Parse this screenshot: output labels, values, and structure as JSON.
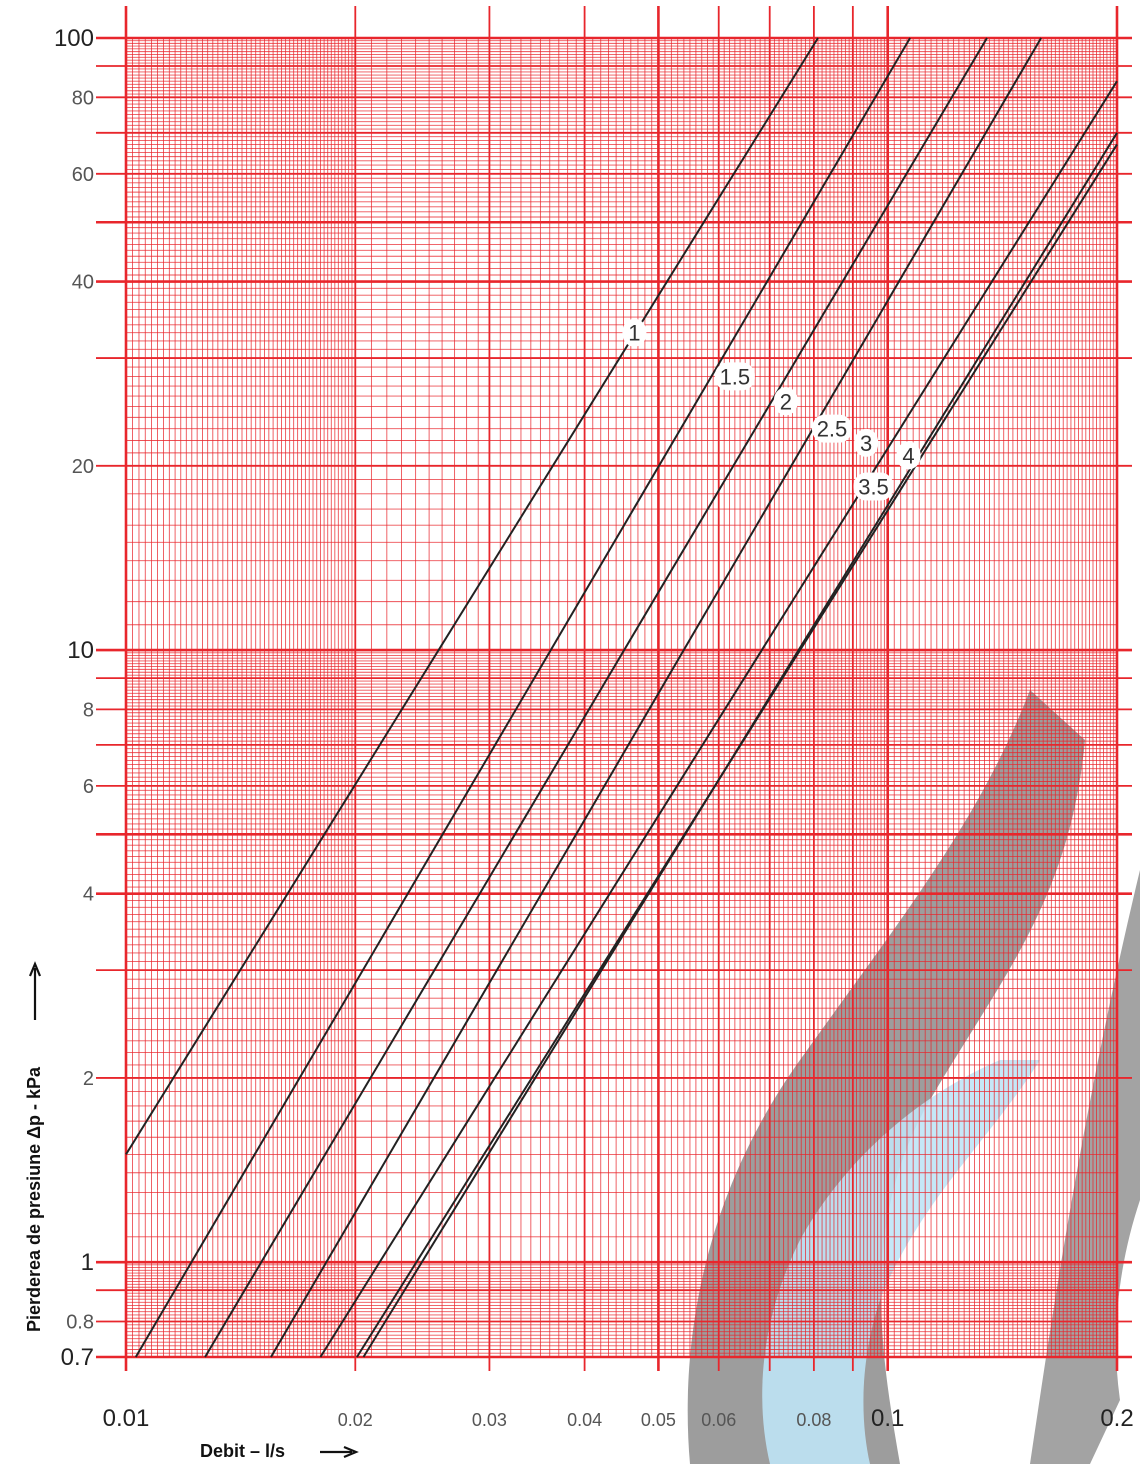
{
  "chart_data": {
    "type": "line",
    "title": "",
    "xlabel": "Debit – l/s",
    "ylabel": "Pierderea de presiune Δp - kPa",
    "x_scale": "log",
    "y_scale": "log",
    "xlim": [
      0.01,
      0.2
    ],
    "ylim": [
      0.7,
      100
    ],
    "grid": true,
    "x_ticks": [
      {
        "value": 0.01,
        "label": "0.01",
        "major": true
      },
      {
        "value": 0.02,
        "label": "0.02",
        "major": false
      },
      {
        "value": 0.03,
        "label": "0.03",
        "major": false
      },
      {
        "value": 0.04,
        "label": "0.04",
        "major": false
      },
      {
        "value": 0.05,
        "label": "0.05",
        "major": false
      },
      {
        "value": 0.06,
        "label": "0.06",
        "major": false
      },
      {
        "value": 0.08,
        "label": "0.08",
        "major": false
      },
      {
        "value": 0.1,
        "label": "0.1",
        "major": true
      },
      {
        "value": 0.2,
        "label": "0.2",
        "major": true
      }
    ],
    "y_ticks": [
      {
        "value": 0.7,
        "label": "0.7",
        "major": true
      },
      {
        "value": 0.8,
        "label": "0.8",
        "major": false
      },
      {
        "value": 1,
        "label": "1",
        "major": true
      },
      {
        "value": 2,
        "label": "2",
        "major": false
      },
      {
        "value": 4,
        "label": "4",
        "major": false
      },
      {
        "value": 6,
        "label": "6",
        "major": false
      },
      {
        "value": 8,
        "label": "8",
        "major": false
      },
      {
        "value": 10,
        "label": "10",
        "major": true
      },
      {
        "value": 20,
        "label": "20",
        "major": false
      },
      {
        "value": 40,
        "label": "40",
        "major": false
      },
      {
        "value": 60,
        "label": "60",
        "major": false
      },
      {
        "value": 80,
        "label": "80",
        "major": false
      },
      {
        "value": 100,
        "label": "100",
        "major": true
      }
    ],
    "series": [
      {
        "name": "1",
        "x": [
          0.01,
          0.081
        ],
        "y": [
          1.5,
          100
        ],
        "label_at": [
          0.0465,
          33
        ]
      },
      {
        "name": "1.5",
        "x": [
          0.0103,
          0.107
        ],
        "y": [
          0.7,
          100
        ],
        "label_at": [
          0.063,
          28
        ]
      },
      {
        "name": "2",
        "x": [
          0.0127,
          0.135
        ],
        "y": [
          0.7,
          100
        ],
        "label_at": [
          0.0735,
          25.5
        ]
      },
      {
        "name": "2.5",
        "x": [
          0.0155,
          0.159
        ],
        "y": [
          0.7,
          100
        ],
        "label_at": [
          0.0845,
          23
        ]
      },
      {
        "name": "3",
        "x": [
          0.018,
          0.2
        ],
        "y": [
          0.7,
          85
        ],
        "label_at": [
          0.0937,
          21.8
        ]
      },
      {
        "name": "3.5",
        "x": [
          0.0201,
          0.2
        ],
        "y": [
          0.7,
          67
        ],
        "label_at": [
          0.0958,
          18.5
        ]
      },
      {
        "name": "4",
        "x": [
          0.0205,
          0.2
        ],
        "y": [
          0.7,
          70
        ],
        "label_at": [
          0.1065,
          20.8
        ]
      }
    ],
    "colors": {
      "grid": "#e8262c",
      "curve": "#222222",
      "label_bg": "#ffffff",
      "watermark_gray": "#8c8c8c",
      "watermark_blue": "#bfe4f6"
    }
  }
}
